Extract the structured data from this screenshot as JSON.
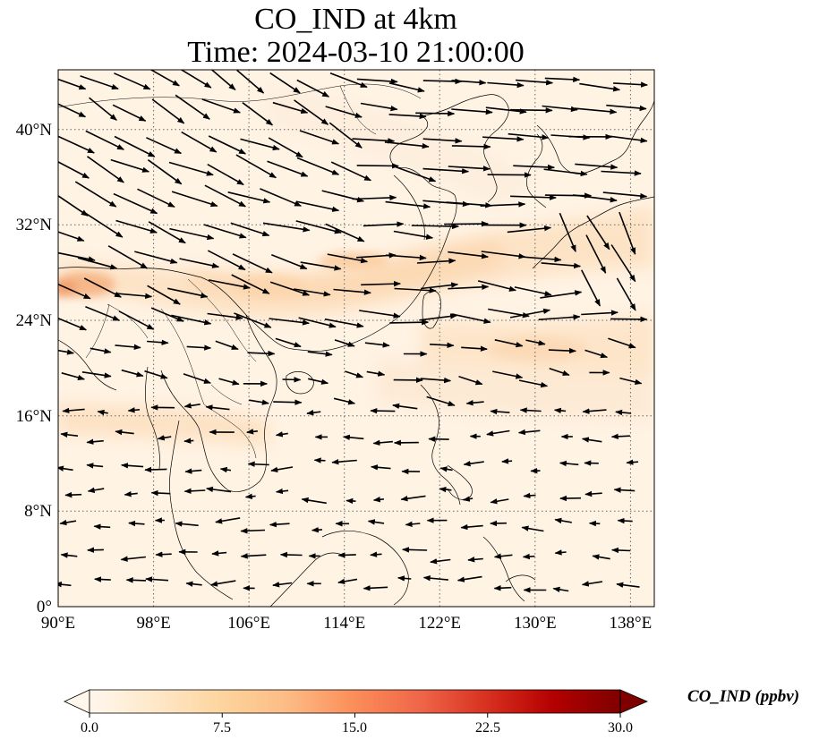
{
  "title": "CO_IND at 4km",
  "subtitle": "Time: 2024-03-10 21:00:00",
  "map": {
    "projection": "PlateCarree",
    "lon_range": [
      90,
      140
    ],
    "lat_range": [
      0,
      45
    ],
    "gridlines": "dotted",
    "lon_ticks": [
      "90°E",
      "98°E",
      "106°E",
      "114°E",
      "122°E",
      "130°E",
      "138°E"
    ],
    "lat_ticks": [
      "0°",
      "8°N",
      "16°N",
      "24°N",
      "32°N",
      "40°N"
    ],
    "field": "CO_IND",
    "overlay": "wind vectors",
    "feature": "coastlines and country borders"
  },
  "colorbar": {
    "label": "CO_IND (ppbv)",
    "colormap": "OrRd",
    "extend": "both",
    "ticks": [
      "0.0",
      "7.5",
      "15.0",
      "22.5",
      "30.0"
    ],
    "colors": [
      "#fff7ec",
      "#fee8c8",
      "#fdd49e",
      "#fdbb84",
      "#fc8d59",
      "#ef6548",
      "#d7301f",
      "#b30000",
      "#7f0000"
    ]
  }
}
